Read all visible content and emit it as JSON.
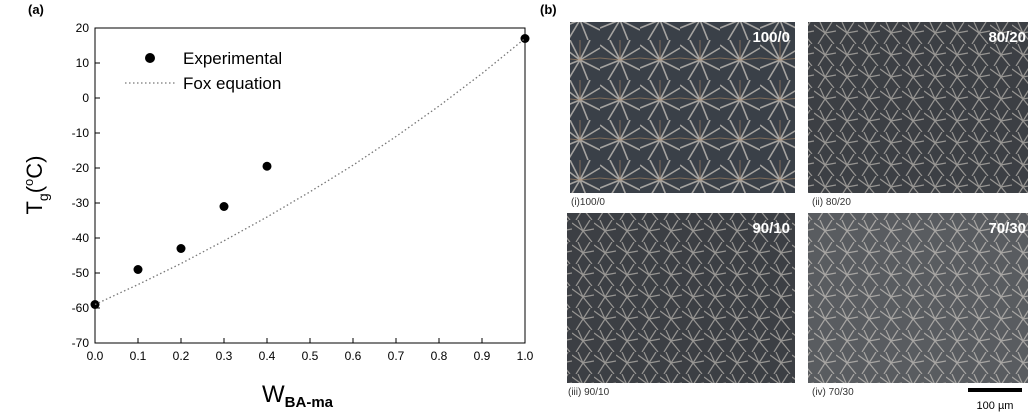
{
  "chart_data": {
    "type": "scatter",
    "panel_label": "(a)",
    "x_label": {
      "main": "W",
      "sub": "BA-ma"
    },
    "y_label": {
      "main": "T",
      "sub": "g",
      "open": "(",
      "sup": "o",
      "close": "C)"
    },
    "xlim": [
      0,
      1
    ],
    "ylim": [
      -70,
      20
    ],
    "xticks": [
      {
        "value": 0,
        "label": "0.0"
      },
      0.1,
      0.2,
      0.3,
      0.4,
      0.5,
      0.6,
      0.7,
      0.8,
      0.9,
      {
        "value": 1,
        "label": "1.0"
      }
    ],
    "yticks": [
      -70,
      -60,
      -50,
      -40,
      -30,
      -20,
      -10,
      0,
      10,
      20
    ],
    "series": [
      {
        "name": "Experimental",
        "color": "#000000",
        "style": "marker",
        "x": [
          0,
          0.1,
          0.2,
          0.3,
          0.4,
          1
        ],
        "y": [
          -59,
          -49,
          -43,
          -31,
          -19.5,
          17
        ]
      },
      {
        "name": "Fox equation",
        "color": "#777777",
        "style": "dotted",
        "x": [
          0,
          0.1,
          0.2,
          0.3,
          0.4,
          0.5,
          0.6,
          0.7,
          0.8,
          0.9,
          1
        ],
        "y": [
          -59,
          -53.3,
          -47.3,
          -40.8,
          -34,
          -26.8,
          -19.2,
          -11,
          -2.3,
          7,
          17
        ]
      }
    ]
  },
  "micrographs": {
    "panel_label": "(b)",
    "scale_bar": "100 µm",
    "images": [
      {
        "label": "100/0",
        "caption": "(i)100/0"
      },
      {
        "label": "80/20",
        "caption": "(ii) 80/20"
      },
      {
        "label": "90/10",
        "caption": "(iii) 90/10"
      },
      {
        "label": "70/30",
        "caption": "(iv) 70/30"
      }
    ]
  }
}
